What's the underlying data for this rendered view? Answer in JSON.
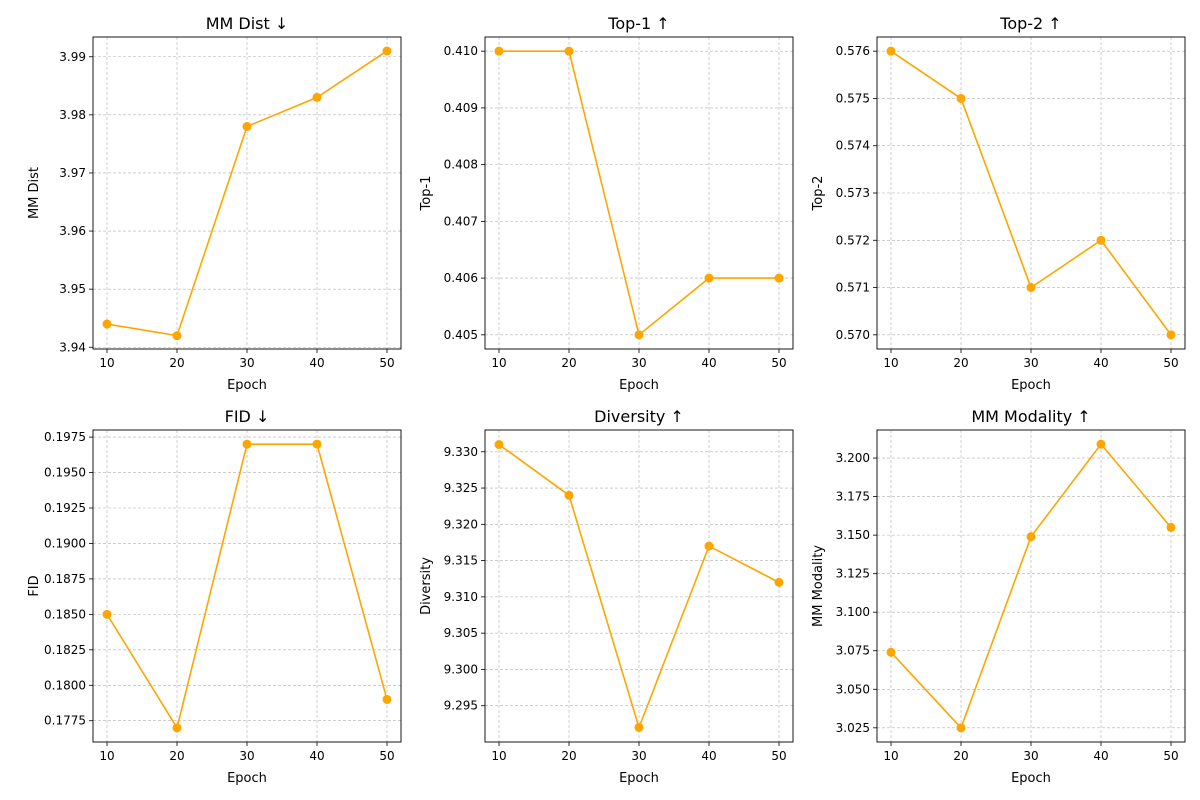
{
  "chart_data": [
    {
      "type": "line",
      "title": "MM Dist ↓",
      "xlabel": "Epoch",
      "ylabel": "MM Dist",
      "x": [
        10,
        20,
        30,
        40,
        50
      ],
      "y": [
        3.944,
        3.942,
        3.978,
        3.983,
        3.991
      ],
      "xlim": [
        8,
        52
      ],
      "ylim": [
        3.9397,
        3.9934
      ],
      "xticks": [
        "10",
        "20",
        "30",
        "40",
        "50"
      ],
      "yticks": [
        "3.94",
        "3.95",
        "3.96",
        "3.97",
        "3.98",
        "3.99"
      ],
      "grid": true,
      "color": "#ffa500"
    },
    {
      "type": "line",
      "title": "Top-1 ↑",
      "xlabel": "Epoch",
      "ylabel": "Top-1",
      "x": [
        10,
        20,
        30,
        40,
        50
      ],
      "y": [
        0.41,
        0.41,
        0.405,
        0.406,
        0.406
      ],
      "xlim": [
        8,
        52
      ],
      "ylim": [
        0.40475,
        0.41025
      ],
      "xticks": [
        "10",
        "20",
        "30",
        "40",
        "50"
      ],
      "yticks": [
        "0.405",
        "0.406",
        "0.407",
        "0.408",
        "0.409",
        "0.410"
      ],
      "grid": true,
      "color": "#ffa500"
    },
    {
      "type": "line",
      "title": "Top-2 ↑",
      "xlabel": "Epoch",
      "ylabel": "Top-2",
      "x": [
        10,
        20,
        30,
        40,
        50
      ],
      "y": [
        0.576,
        0.575,
        0.571,
        0.572,
        0.57
      ],
      "xlim": [
        8,
        52
      ],
      "ylim": [
        0.5697,
        0.5763
      ],
      "xticks": [
        "10",
        "20",
        "30",
        "40",
        "50"
      ],
      "yticks": [
        "0.570",
        "0.571",
        "0.572",
        "0.573",
        "0.574",
        "0.575",
        "0.576"
      ],
      "grid": true,
      "color": "#ffa500"
    },
    {
      "type": "line",
      "title": "FID ↓",
      "xlabel": "Epoch",
      "ylabel": "FID",
      "x": [
        10,
        20,
        30,
        40,
        50
      ],
      "y": [
        0.185,
        0.177,
        0.197,
        0.197,
        0.179
      ],
      "xlim": [
        8,
        52
      ],
      "ylim": [
        0.176,
        0.198
      ],
      "xticks": [
        "10",
        "20",
        "30",
        "40",
        "50"
      ],
      "yticks": [
        "0.1775",
        "0.1800",
        "0.1825",
        "0.1850",
        "0.1875",
        "0.1900",
        "0.1925",
        "0.1950",
        "0.1975"
      ],
      "grid": true,
      "color": "#ffa500"
    },
    {
      "type": "line",
      "title": "Diversity ↑",
      "xlabel": "Epoch",
      "ylabel": "Diversity",
      "x": [
        10,
        20,
        30,
        40,
        50
      ],
      "y": [
        9.331,
        9.324,
        9.292,
        9.317,
        9.312
      ],
      "xlim": [
        8,
        52
      ],
      "ylim": [
        9.29,
        9.333
      ],
      "xticks": [
        "10",
        "20",
        "30",
        "40",
        "50"
      ],
      "yticks": [
        "9.295",
        "9.300",
        "9.305",
        "9.310",
        "9.315",
        "9.320",
        "9.325",
        "9.330"
      ],
      "grid": true,
      "color": "#ffa500"
    },
    {
      "type": "line",
      "title": "MM Modality ↑",
      "xlabel": "Epoch",
      "ylabel": "MM Modality",
      "x": [
        10,
        20,
        30,
        40,
        50
      ],
      "y": [
        3.074,
        3.025,
        3.149,
        3.209,
        3.155
      ],
      "xlim": [
        8,
        52
      ],
      "ylim": [
        3.0158,
        3.2182
      ],
      "xticks": [
        "10",
        "20",
        "30",
        "40",
        "50"
      ],
      "yticks": [
        "3.025",
        "3.050",
        "3.075",
        "3.100",
        "3.125",
        "3.150",
        "3.175",
        "3.200"
      ],
      "grid": true,
      "color": "#ffa500"
    }
  ]
}
